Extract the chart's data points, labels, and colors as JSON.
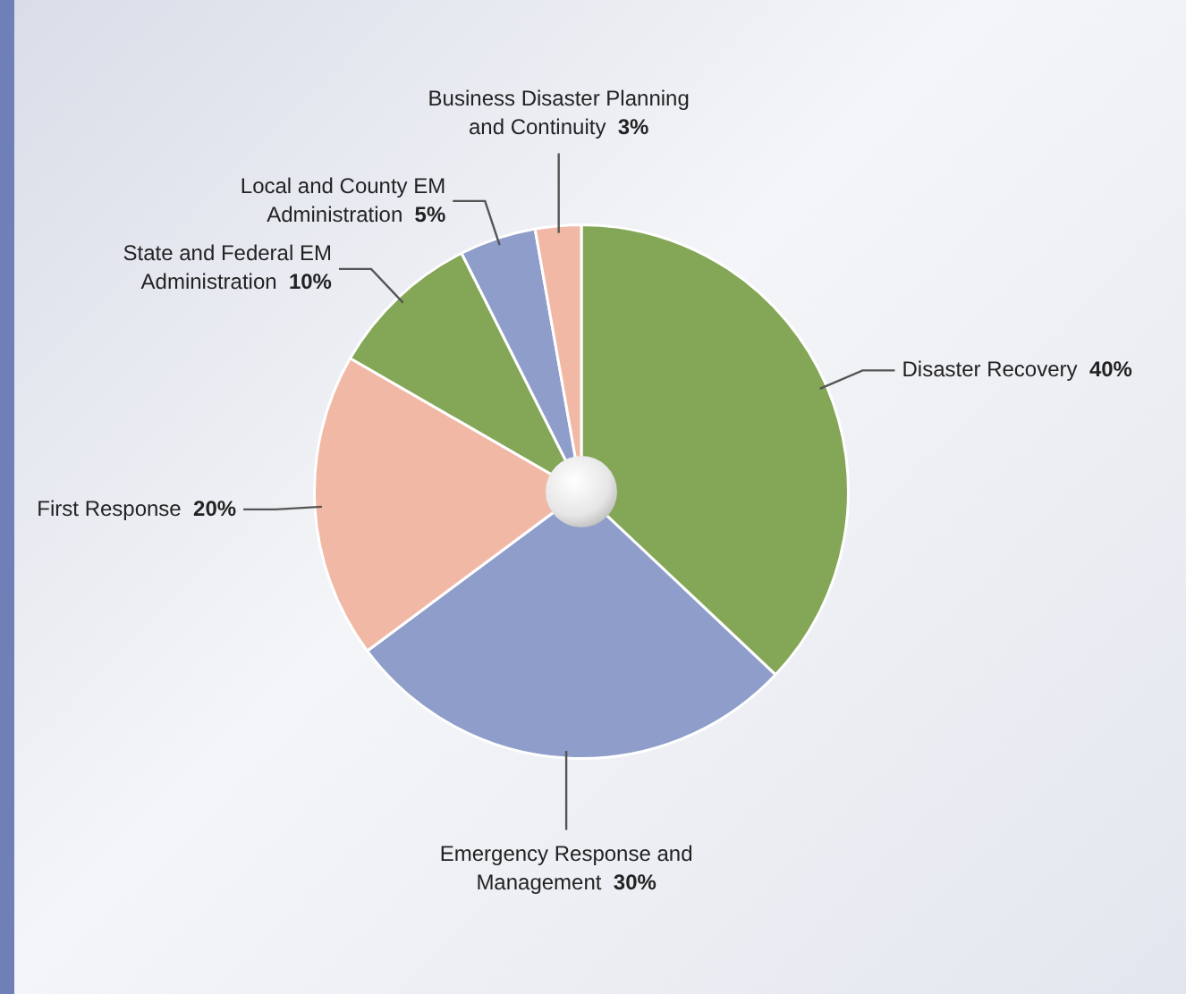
{
  "chart_data": {
    "type": "pie",
    "categories": [
      "Disaster Recovery",
      "Emergency Response and Management",
      "First Response",
      "State and Federal EM Administration",
      "Local and County EM Administration",
      "Business Disaster Planning and Continuity"
    ],
    "values": [
      40,
      30,
      20,
      10,
      5,
      3
    ],
    "colors": [
      "#84a657",
      "#8e9dc9",
      "#f2b8a6",
      "#84a657",
      "#8e9dc9",
      "#f2b8a6"
    ],
    "value_labels": [
      "40%",
      "30%",
      "20%",
      "10%",
      "5%",
      "3%"
    ],
    "legend": false
  }
}
